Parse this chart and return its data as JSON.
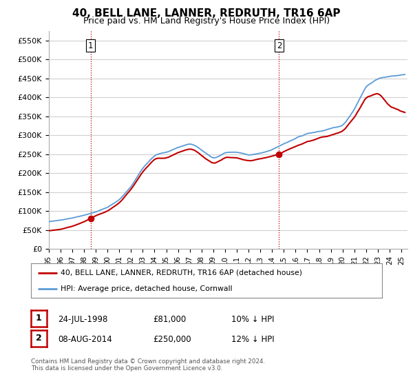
{
  "title": "40, BELL LANE, LANNER, REDRUTH, TR16 6AP",
  "subtitle": "Price paid vs. HM Land Registry's House Price Index (HPI)",
  "ylabel_ticks": [
    "£0",
    "£50K",
    "£100K",
    "£150K",
    "£200K",
    "£250K",
    "£300K",
    "£350K",
    "£400K",
    "£450K",
    "£500K",
    "£550K"
  ],
  "ytick_values": [
    0,
    50000,
    100000,
    150000,
    200000,
    250000,
    300000,
    350000,
    400000,
    450000,
    500000,
    550000
  ],
  "ylim": [
    0,
    575000
  ],
  "xlim_start": 1995.0,
  "xlim_end": 2025.5,
  "sale1": {
    "date_num": 1998.56,
    "price": 81000,
    "label": "1"
  },
  "sale2": {
    "date_num": 2014.6,
    "price": 250000,
    "label": "2"
  },
  "legend_line1": "40, BELL LANE, LANNER, REDRUTH, TR16 6AP (detached house)",
  "legend_line2": "HPI: Average price, detached house, Cornwall",
  "table_row1": [
    "1",
    "24-JUL-1998",
    "£81,000",
    "10% ↓ HPI"
  ],
  "table_row2": [
    "2",
    "08-AUG-2014",
    "£250,000",
    "12% ↓ HPI"
  ],
  "footnote": "Contains HM Land Registry data © Crown copyright and database right 2024.\nThis data is licensed under the Open Government Licence v3.0.",
  "hpi_color": "#5b9bd5",
  "price_color": "#c00000",
  "vline_color": "#c00000",
  "grid_color": "#d0d0d0",
  "background_color": "#ffffff",
  "title_fontsize": 11,
  "subtitle_fontsize": 9,
  "tick_fontsize": 8,
  "hpi_keypoints": [
    [
      1995.0,
      72000
    ],
    [
      1996.0,
      76000
    ],
    [
      1997.0,
      82000
    ],
    [
      1998.0,
      89000
    ],
    [
      1999.0,
      98000
    ],
    [
      2000.0,
      110000
    ],
    [
      2001.0,
      130000
    ],
    [
      2002.0,
      165000
    ],
    [
      2003.0,
      215000
    ],
    [
      2004.0,
      248000
    ],
    [
      2005.0,
      255000
    ],
    [
      2006.0,
      268000
    ],
    [
      2007.0,
      278000
    ],
    [
      2007.5,
      272000
    ],
    [
      2008.0,
      260000
    ],
    [
      2009.0,
      238000
    ],
    [
      2009.5,
      245000
    ],
    [
      2010.0,
      255000
    ],
    [
      2011.0,
      255000
    ],
    [
      2012.0,
      248000
    ],
    [
      2013.0,
      252000
    ],
    [
      2014.0,
      262000
    ],
    [
      2015.0,
      278000
    ],
    [
      2016.0,
      292000
    ],
    [
      2017.0,
      305000
    ],
    [
      2018.0,
      310000
    ],
    [
      2019.0,
      318000
    ],
    [
      2020.0,
      325000
    ],
    [
      2021.0,
      370000
    ],
    [
      2022.0,
      430000
    ],
    [
      2023.0,
      450000
    ],
    [
      2024.0,
      455000
    ],
    [
      2025.3,
      460000
    ]
  ],
  "price_keypoints": [
    [
      1995.0,
      48000
    ],
    [
      1996.0,
      52000
    ],
    [
      1997.0,
      60000
    ],
    [
      1998.0,
      72000
    ],
    [
      1998.56,
      81000
    ],
    [
      1999.0,
      88000
    ],
    [
      2000.0,
      100000
    ],
    [
      2001.0,
      122000
    ],
    [
      2002.0,
      158000
    ],
    [
      2003.0,
      205000
    ],
    [
      2004.0,
      238000
    ],
    [
      2005.0,
      240000
    ],
    [
      2006.0,
      255000
    ],
    [
      2007.0,
      265000
    ],
    [
      2007.5,
      258000
    ],
    [
      2008.0,
      245000
    ],
    [
      2009.0,
      225000
    ],
    [
      2009.5,
      232000
    ],
    [
      2010.0,
      242000
    ],
    [
      2011.0,
      240000
    ],
    [
      2012.0,
      232000
    ],
    [
      2013.0,
      238000
    ],
    [
      2014.0,
      245000
    ],
    [
      2014.6,
      250000
    ],
    [
      2015.0,
      258000
    ],
    [
      2016.0,
      270000
    ],
    [
      2017.0,
      283000
    ],
    [
      2018.0,
      293000
    ],
    [
      2019.0,
      300000
    ],
    [
      2020.0,
      310000
    ],
    [
      2021.0,
      348000
    ],
    [
      2022.0,
      400000
    ],
    [
      2023.0,
      410000
    ],
    [
      2023.5,
      395000
    ],
    [
      2024.0,
      375000
    ],
    [
      2024.5,
      368000
    ],
    [
      2025.3,
      360000
    ]
  ]
}
